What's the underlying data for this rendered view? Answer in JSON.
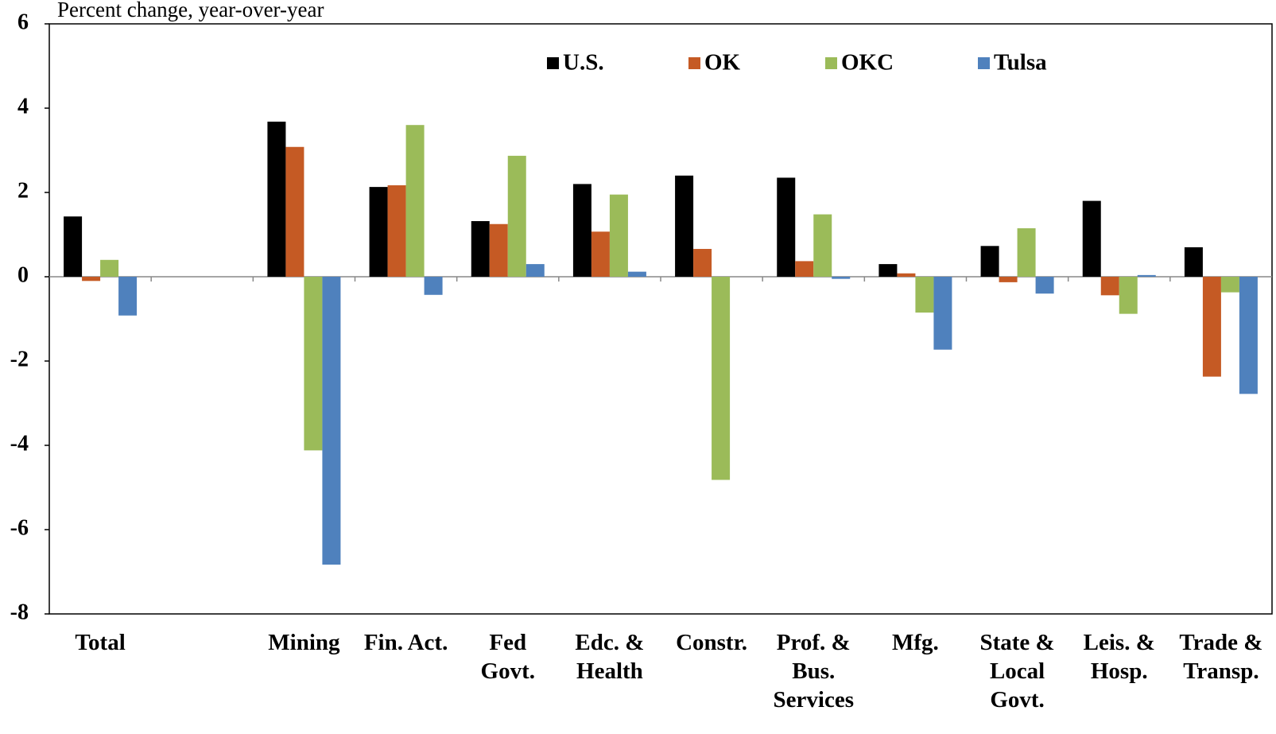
{
  "chart_data": {
    "type": "bar",
    "ylabel": "Percent change,  year-over-year",
    "categories": [
      "Total",
      null,
      "Mining",
      "Fin. Act.",
      "Fed\nGovt.",
      "Edc. &\nHealth",
      "Constr.",
      "Prof. &\nBus.\nServices",
      "Mfg.",
      "State &\nLocal\nGovt.",
      "Leis. &\nHosp.",
      "Trade &\nTransp."
    ],
    "series": [
      {
        "name": "U.S.",
        "color": "#000000",
        "values": [
          1.43,
          null,
          3.68,
          2.13,
          1.32,
          2.2,
          2.4,
          2.35,
          0.3,
          0.73,
          1.8,
          0.7
        ]
      },
      {
        "name": "OK",
        "color": "#c55a24",
        "values": [
          -0.1,
          null,
          3.08,
          2.17,
          1.25,
          1.07,
          0.66,
          0.37,
          0.08,
          -0.13,
          -0.44,
          -2.37
        ]
      },
      {
        "name": "OKC",
        "color": "#9bbb59",
        "values": [
          0.4,
          null,
          -4.12,
          3.6,
          2.87,
          1.95,
          -4.82,
          1.48,
          -0.85,
          1.15,
          -0.88,
          -0.37
        ]
      },
      {
        "name": "Tulsa",
        "color": "#4f81bd",
        "values": [
          -0.92,
          null,
          -6.83,
          -0.43,
          0.3,
          0.12,
          0,
          -0.05,
          -1.73,
          -0.4,
          0.04,
          -2.78
        ]
      }
    ],
    "ylim": [
      -8,
      6
    ],
    "yticks": [
      -8,
      -6,
      -4,
      -2,
      0,
      2,
      4,
      6
    ],
    "grid": false,
    "legend": "top"
  }
}
